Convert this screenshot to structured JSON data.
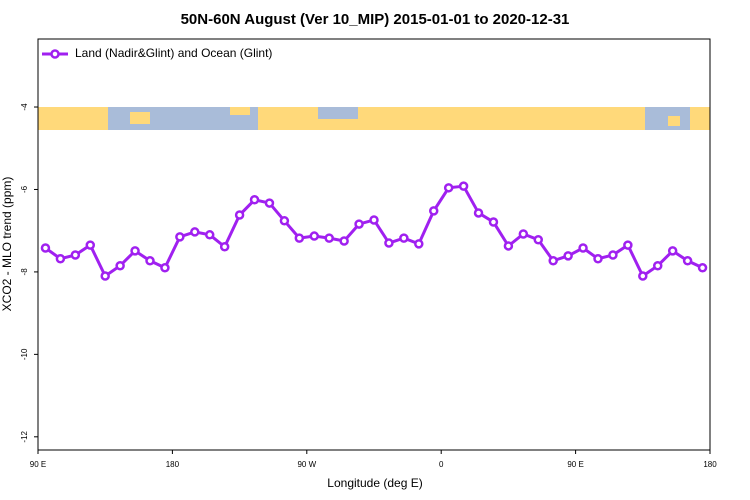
{
  "chart_data": {
    "type": "line",
    "title": "50N-60N August (Ver 10_MIP)   2015-01-01 to 2020-12-31",
    "x_label": "Longitude (deg E)",
    "y_label": "XCO2 - MLO trend (ppm)",
    "x": [
      95,
      105,
      115,
      125,
      135,
      145,
      155,
      165,
      175,
      185,
      195,
      205,
      215,
      225,
      235,
      245,
      255,
      265,
      275,
      285,
      295,
      305,
      315,
      325,
      335,
      345,
      355,
      365,
      375,
      385,
      395,
      405,
      415,
      425,
      435,
      445,
      455,
      465,
      475,
      485,
      495,
      505,
      515,
      525,
      535
    ],
    "series": [
      {
        "name": "Land (Nadir&Glint) and Ocean (Glint)",
        "color": "#a020f0",
        "values": [
          -7.42,
          -7.68,
          -7.59,
          -7.35,
          -8.1,
          -7.85,
          -7.49,
          -7.73,
          -7.9,
          -7.15,
          -7.03,
          -7.1,
          -7.39,
          -6.62,
          -6.25,
          -6.33,
          -6.76,
          -7.18,
          -7.13,
          -7.18,
          -7.25,
          -6.84,
          -6.74,
          -7.3,
          -7.18,
          -7.32,
          -6.52,
          -5.96,
          -5.92,
          -6.57,
          -6.79,
          -7.37,
          -7.08,
          -7.22,
          -7.73,
          -7.61,
          -7.42,
          -7.68,
          -7.59,
          -7.35,
          -8.1,
          -7.85,
          -7.49,
          -7.73,
          -7.9
        ]
      }
    ],
    "xlim": [
      90,
      540
    ],
    "xticks": [
      {
        "value": 90,
        "label": "90 E"
      },
      {
        "value": 180,
        "label": "180"
      },
      {
        "value": 270,
        "label": "90 W"
      },
      {
        "value": 360,
        "label": "0"
      },
      {
        "value": 450,
        "label": "90 E"
      },
      {
        "value": 540,
        "label": "180"
      }
    ],
    "ylim": [
      -12.32,
      -2.35
    ],
    "yticks": [
      -12,
      -10,
      -8,
      -6,
      -4
    ],
    "legend": "top-left"
  }
}
